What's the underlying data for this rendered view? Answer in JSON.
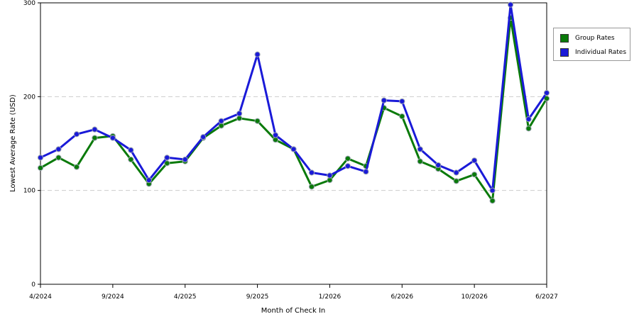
{
  "chart_data": {
    "type": "line",
    "title": "",
    "xlabel": "Month of Check In",
    "ylabel": "Lowest Average Rate (USD)",
    "ylim": [
      0,
      300
    ],
    "yticks": [
      "0",
      "100",
      "200",
      "300"
    ],
    "x_tick_labels": [
      {
        "index": 0,
        "label": "4/2024"
      },
      {
        "index": 4,
        "label": "9/2024"
      },
      {
        "index": 8,
        "label": "4/2025"
      },
      {
        "index": 12,
        "label": "9/2025"
      },
      {
        "index": 16,
        "label": "1/2026"
      },
      {
        "index": 20,
        "label": "6/2026"
      },
      {
        "index": 24,
        "label": "10/2026"
      },
      {
        "index": 28,
        "label": "6/2027"
      }
    ],
    "grid": "horizontal dashed",
    "legend_position": "right",
    "series": [
      {
        "name": "Group Rates",
        "color": "#0a7a0a",
        "values": [
          124,
          135,
          125,
          156,
          158,
          133,
          107,
          129,
          131,
          156,
          169,
          177,
          174,
          154,
          144,
          104,
          111,
          134,
          126,
          188,
          179,
          131,
          123,
          110,
          117,
          89,
          284,
          166,
          198
        ]
      },
      {
        "name": "Individual Rates",
        "color": "#1a1ad8",
        "values": [
          135,
          144,
          160,
          165,
          156,
          143,
          111,
          135,
          133,
          157,
          174,
          182,
          245,
          159,
          144,
          119,
          116,
          126,
          120,
          196,
          195,
          144,
          127,
          119,
          132,
          100,
          298,
          176,
          204
        ]
      }
    ]
  }
}
